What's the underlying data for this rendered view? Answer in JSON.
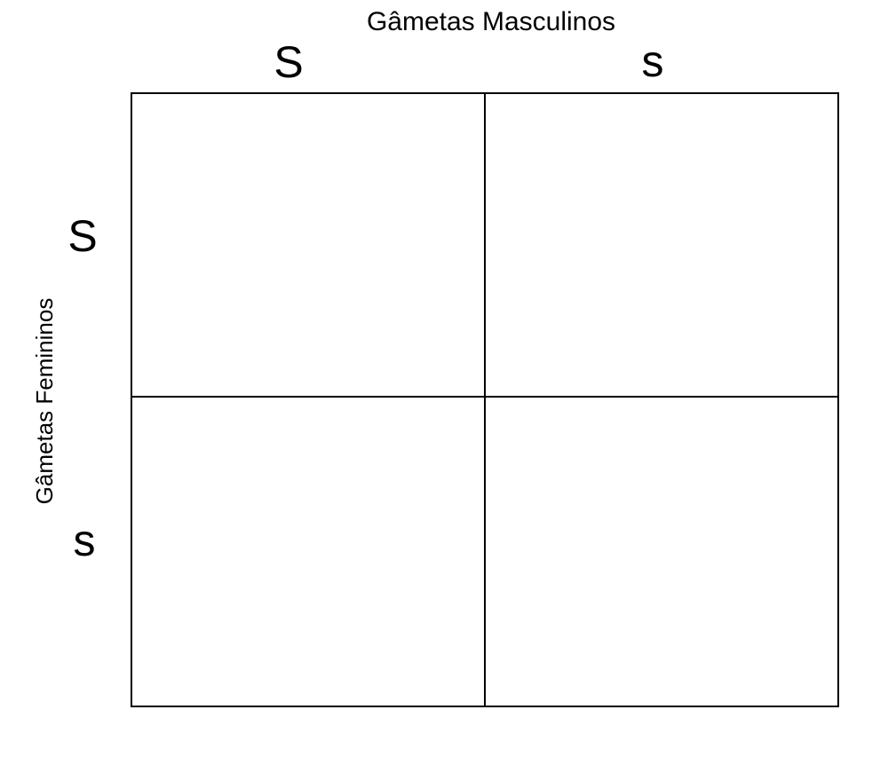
{
  "punnett": {
    "title_top": "Gâmetas Masculinos",
    "title_side": "Gâmetas Femininos",
    "column_headers": [
      "S",
      "s"
    ],
    "row_headers": [
      "S",
      "s"
    ],
    "cells": [
      "",
      "",
      "",
      ""
    ],
    "colors": {
      "line": "#000000",
      "text": "#000000",
      "background": "#ffffff"
    }
  }
}
